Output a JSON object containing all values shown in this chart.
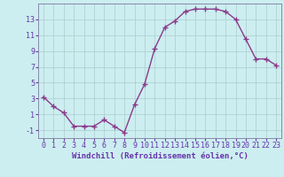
{
  "x": [
    0,
    1,
    2,
    3,
    4,
    5,
    6,
    7,
    8,
    9,
    10,
    11,
    12,
    13,
    14,
    15,
    16,
    17,
    18,
    19,
    20,
    21,
    22,
    23
  ],
  "y": [
    3.2,
    2.0,
    1.2,
    -0.5,
    -0.5,
    -0.5,
    0.3,
    -0.5,
    -1.3,
    2.2,
    4.8,
    9.3,
    12.0,
    12.8,
    14.0,
    14.3,
    14.3,
    14.3,
    14.0,
    13.0,
    10.5,
    8.0,
    8.0,
    7.2
  ],
  "xlim": [
    -0.5,
    23.5
  ],
  "ylim": [
    -2,
    15
  ],
  "yticks": [
    -1,
    1,
    3,
    5,
    7,
    9,
    11,
    13
  ],
  "xticks": [
    0,
    1,
    2,
    3,
    4,
    5,
    6,
    7,
    8,
    9,
    10,
    11,
    12,
    13,
    14,
    15,
    16,
    17,
    18,
    19,
    20,
    21,
    22,
    23
  ],
  "line_color": "#8b3a8b",
  "marker": "+",
  "marker_size": 4,
  "bg_color": "#cceef0",
  "grid_color": "#aacccc",
  "xlabel": "Windchill (Refroidissement éolien,°C)",
  "xlabel_fontsize": 6.5,
  "tick_fontsize": 6,
  "linewidth": 1.0,
  "figure_width": 3.2,
  "figure_height": 2.0,
  "dpi": 100
}
